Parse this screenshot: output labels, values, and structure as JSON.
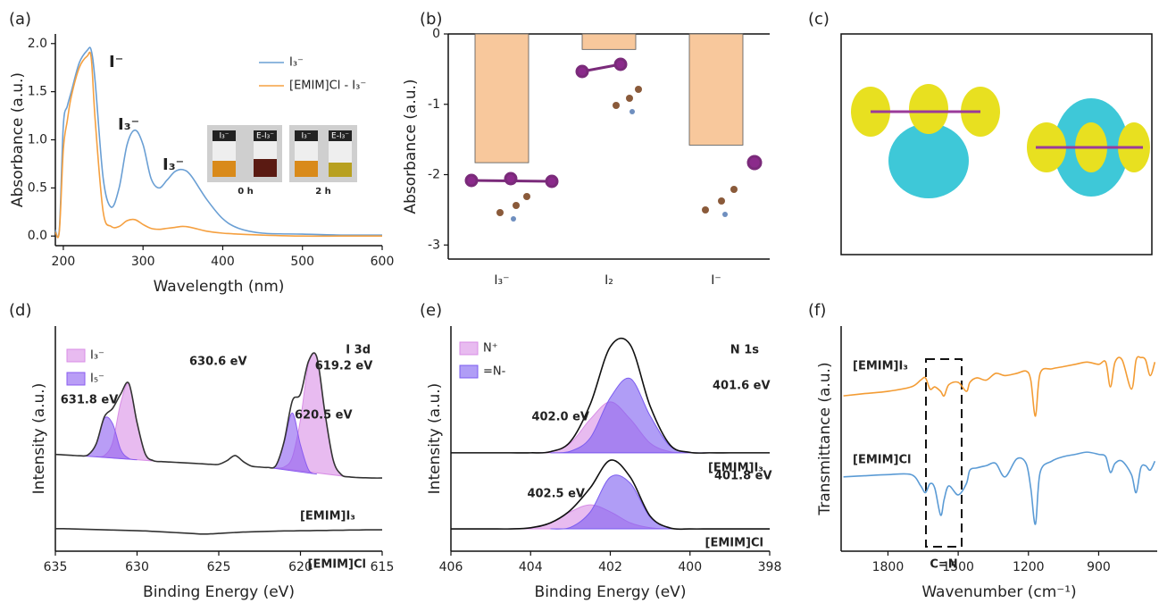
{
  "chart_data": [
    {
      "type": "line",
      "label": "(a)",
      "xlabel": "Wavelength (nm)",
      "ylabel": "Absorbance (a.u.)",
      "x": [
        190,
        195,
        200,
        205,
        210,
        220,
        230,
        235,
        240,
        250,
        260,
        270,
        280,
        290,
        300,
        310,
        320,
        330,
        340,
        350,
        360,
        380,
        400,
        420,
        450,
        500,
        550,
        600
      ],
      "series": [
        {
          "name": "I₃⁻",
          "color": "#6a9fd4",
          "values": [
            0.06,
            0.07,
            1.15,
            1.35,
            1.5,
            1.8,
            1.93,
            1.93,
            1.6,
            0.6,
            0.3,
            0.5,
            0.95,
            1.1,
            0.95,
            0.6,
            0.5,
            0.58,
            0.67,
            0.69,
            0.63,
            0.38,
            0.18,
            0.08,
            0.03,
            0.02,
            0.01,
            0.01
          ]
        },
        {
          "name": "[EMIM]Cl - I₃⁻",
          "color": "#f5a040",
          "values": [
            0.04,
            0.05,
            0.9,
            1.2,
            1.45,
            1.75,
            1.87,
            1.85,
            1.2,
            0.25,
            0.1,
            0.1,
            0.16,
            0.17,
            0.12,
            0.08,
            0.07,
            0.08,
            0.09,
            0.1,
            0.09,
            0.05,
            0.03,
            0.02,
            0.01,
            0.0,
            0.0,
            0.0
          ]
        }
      ],
      "xlim": [
        190,
        600
      ],
      "xticks": [
        200,
        300,
        400,
        500,
        600
      ],
      "ylim": [
        -0.1,
        2.1
      ],
      "yticks": [
        {
          "value": 0,
          "label": "0.0"
        },
        {
          "value": 0.5,
          "label": "0.5"
        },
        {
          "value": 1,
          "label": "1.0"
        },
        {
          "value": 1.5,
          "label": "1.5"
        },
        {
          "value": 2,
          "label": "2.0"
        }
      ],
      "legend": "upper right",
      "annotations": [
        {
          "text": "I⁻"
        },
        {
          "text": "I₃⁻"
        },
        {
          "text": "I₃⁻"
        }
      ],
      "inset": {
        "labels": [
          "I₃⁻",
          "E-I₃⁻",
          "I₃⁻",
          "E-I₃⁻"
        ],
        "times": [
          "0 h",
          "2 h"
        ]
      }
    },
    {
      "type": "bar",
      "label": "(b)",
      "ylabel": "Absorbance (a.u.)",
      "categories": [
        "I₃⁻",
        "I₂",
        "I⁻"
      ],
      "values": [
        -1.83,
        -0.22,
        -1.58
      ],
      "color": "#f8c89c",
      "ylim": [
        -3.2,
        0
      ],
      "yticks": [
        0,
        -1,
        -2,
        -3
      ]
    },
    {
      "type": "image",
      "label": "(c)"
    },
    {
      "type": "line",
      "label": "(d)",
      "xlabel": "Binding Energy (eV)",
      "ylabel": "Intensity (a.u.)",
      "x": [
        635,
        634.5,
        634,
        633.5,
        633,
        632.5,
        632,
        631.5,
        631,
        630.5,
        630,
        629.5,
        629,
        628.5,
        628,
        627.5,
        627,
        626.5,
        626,
        625.5,
        625,
        624.5,
        624,
        623.5,
        623,
        622.5,
        622,
        621.5,
        621,
        620.5,
        620,
        619.5,
        619,
        618.5,
        618,
        617.5,
        617,
        616.5,
        616,
        615.5,
        615
      ],
      "series": [
        {
          "name": "I₃⁻",
          "color": "#d88ee6",
          "fill": true,
          "values": [
            null,
            null,
            null,
            null,
            null,
            4.2,
            4.25,
            4.82,
            6.59,
            7.42,
            5.71,
            4.33,
            4.02,
            3.98,
            null,
            null,
            null,
            null,
            null,
            null,
            null,
            null,
            null,
            null,
            null,
            null,
            null,
            3.7,
            3.74,
            4.17,
            5.84,
            8.34,
            8.62,
            6.14,
            4.06,
            3.4,
            3.3,
            null,
            null,
            null,
            null
          ]
        },
        {
          "name": "I₅⁻",
          "color": "#8a5cf0",
          "fill": true,
          "values": [
            null,
            null,
            null,
            4.24,
            4.28,
            4.77,
            5.9,
            5.67,
            4.51,
            4.12,
            4.06,
            null,
            null,
            null,
            null,
            null,
            null,
            null,
            null,
            null,
            null,
            null,
            null,
            null,
            null,
            null,
            3.72,
            3.81,
            4.82,
            6.14,
            4.72,
            3.61,
            3.42,
            null,
            null,
            null,
            null,
            null,
            null,
            null,
            null
          ]
        },
        {
          "name": "[EMIM]I₃",
          "color": "#333333",
          "label_color": "#f39c34",
          "values": [
            4.3,
            4.28,
            4.26,
            4.24,
            4.28,
            4.77,
            5.97,
            6.34,
            6.98,
            7.45,
            5.71,
            4.33,
            4.02,
            3.98,
            3.96,
            3.94,
            3.92,
            3.9,
            3.88,
            3.86,
            3.86,
            4.02,
            4.25,
            3.98,
            3.78,
            3.74,
            3.72,
            3.81,
            4.88,
            6.67,
            6.98,
            8.45,
            8.62,
            6.14,
            4.06,
            3.4,
            3.3,
            3.27,
            3.26,
            3.25,
            3.25
          ]
        },
        {
          "name": "[EMIM]Cl",
          "color": "#333333",
          "label_color": "#5b9bd5",
          "values": [
            1.0,
            1.0,
            0.99,
            0.98,
            0.97,
            0.96,
            0.95,
            0.94,
            0.93,
            0.92,
            0.91,
            0.9,
            0.88,
            0.86,
            0.84,
            0.82,
            0.8,
            0.78,
            0.76,
            0.77,
            0.79,
            0.81,
            0.83,
            0.85,
            0.86,
            0.87,
            0.88,
            0.89,
            0.9,
            0.9,
            0.91,
            0.91,
            0.92,
            0.92,
            0.93,
            0.93,
            0.94,
            0.94,
            0.95,
            0.95,
            0.95
          ]
        }
      ],
      "xlim": [
        635,
        615
      ],
      "xticks": [
        635,
        630,
        625,
        620,
        615
      ],
      "ylim": [
        0,
        10
      ],
      "legend": "upper left",
      "annotations": [
        {
          "text": "I 3d"
        },
        {
          "text": "619.2 eV",
          "color": "#d88ee6"
        },
        {
          "text": "630.6 eV",
          "color": "#d88ee6"
        },
        {
          "text": "631.8 eV",
          "color": "#7b5cf0"
        },
        {
          "text": "620.5 eV",
          "color": "#7b5cf0"
        }
      ]
    },
    {
      "type": "line",
      "label": "(e)",
      "xlabel": "Binding Energy (eV)",
      "ylabel": "Intensity (a.u.)",
      "x": [
        406,
        405.5,
        405,
        404.5,
        404,
        403.5,
        403,
        402.5,
        402,
        401.5,
        401,
        400.5,
        400,
        399.5,
        399,
        398.5,
        398
      ],
      "series": [
        {
          "name": "N⁺",
          "color": "#d88ee6",
          "fill": true,
          "values": [
            null,
            null,
            null,
            null,
            4.37,
            4.42,
            4.8,
            5.87,
            6.63,
            5.87,
            4.8,
            4.42,
            4.37,
            null,
            null,
            null,
            null
          ]
        },
        {
          "name": "=N-",
          "color": "#7b5cf0",
          "fill": true,
          "values": [
            null,
            null,
            null,
            null,
            null,
            4.37,
            4.44,
            5.04,
            6.82,
            7.67,
            6.01,
            4.67,
            4.39,
            4.37,
            null,
            null,
            null
          ]
        },
        {
          "name": "[EMIM]I₃",
          "color": "#111111",
          "label_color": "#f39c34",
          "values": [
            4.37,
            4.37,
            4.37,
            4.37,
            4.37,
            4.42,
            4.87,
            6.54,
            9.08,
            9.17,
            6.44,
            4.72,
            4.39,
            4.37,
            4.37,
            4.37,
            4.37
          ]
        },
        {
          "color": "#d88ee6",
          "fill": true,
          "values": [
            null,
            null,
            null,
            0.99,
            1.04,
            1.26,
            1.75,
            2.06,
            1.75,
            1.26,
            1.04,
            0.99,
            null,
            null,
            null,
            null,
            null
          ]
        },
        {
          "color": "#7b5cf0",
          "fill": true,
          "values": [
            null,
            null,
            null,
            null,
            null,
            0.99,
            1.06,
            1.75,
            3.29,
            3.02,
            1.51,
            1.03,
            0.99,
            null,
            null,
            null,
            null
          ]
        },
        {
          "name": "[EMIM]Cl",
          "color": "#111111",
          "label_color": "#5b9bd5",
          "values": [
            0.99,
            0.99,
            0.99,
            0.99,
            1.04,
            1.26,
            1.82,
            2.82,
            4.04,
            3.29,
            1.56,
            1.03,
            0.99,
            0.99,
            0.99,
            0.99,
            0.99
          ]
        }
      ],
      "xlim": [
        406,
        398
      ],
      "xticks": [
        406,
        404,
        402,
        400,
        398
      ],
      "ylim": [
        0,
        10
      ],
      "legend": "upper left",
      "annotations": [
        {
          "text": "N 1s"
        },
        {
          "text": "402.0 eV",
          "color": "#d88ee6"
        },
        {
          "text": "401.6 eV",
          "color": "#7b5cf0"
        },
        {
          "text": "402.5 eV",
          "color": "#d88ee6"
        },
        {
          "text": "401.8 eV",
          "color": "#7b5cf0"
        }
      ]
    },
    {
      "type": "line",
      "label": "(f)",
      "xlabel": "Wavenumber (cm⁻¹)",
      "ylabel": "Transmittance (a.u.)",
      "x": [
        1990,
        1900,
        1800,
        1700,
        1660,
        1640,
        1620,
        1600,
        1575,
        1560,
        1540,
        1500,
        1465,
        1450,
        1420,
        1380,
        1340,
        1300,
        1250,
        1210,
        1190,
        1170,
        1150,
        1100,
        1050,
        1000,
        950,
        900,
        870,
        850,
        830,
        800,
        760,
        740,
        720,
        700,
        680,
        660
      ],
      "series": [
        {
          "name": "[EMIM]I₃",
          "color": "#f39c34",
          "label_color": "#f39c34",
          "values": [
            6.9,
            7.0,
            7.1,
            7.3,
            7.6,
            7.7,
            7.2,
            7.3,
            7.1,
            6.9,
            7.4,
            7.5,
            7.1,
            7.5,
            7.7,
            7.6,
            7.9,
            7.8,
            7.9,
            8.0,
            7.6,
            6.0,
            7.9,
            8.1,
            8.2,
            8.3,
            8.4,
            8.3,
            8.4,
            7.3,
            8.4,
            8.5,
            7.2,
            8.5,
            8.6,
            8.5,
            7.8,
            8.4
          ]
        },
        {
          "name": "[EMIM]Cl",
          "color": "#5b9bd5",
          "label_color": "#5b9bd5",
          "values": [
            3.3,
            3.35,
            3.4,
            3.4,
            2.9,
            2.6,
            3.0,
            2.8,
            1.6,
            2.3,
            2.9,
            2.5,
            3.0,
            3.6,
            3.7,
            3.8,
            3.9,
            3.3,
            4.1,
            3.9,
            2.8,
            1.2,
            3.5,
            4.0,
            4.2,
            4.3,
            4.4,
            4.3,
            4.2,
            3.5,
            3.9,
            4.0,
            3.4,
            2.6,
            3.7,
            3.8,
            3.6,
            4.0
          ]
        }
      ],
      "xlim": [
        2000,
        650
      ],
      "xticks": [
        1800,
        1500,
        1200,
        900
      ],
      "ylim": [
        0,
        10
      ],
      "annotations": [
        {
          "text": "C=N"
        }
      ]
    }
  ]
}
